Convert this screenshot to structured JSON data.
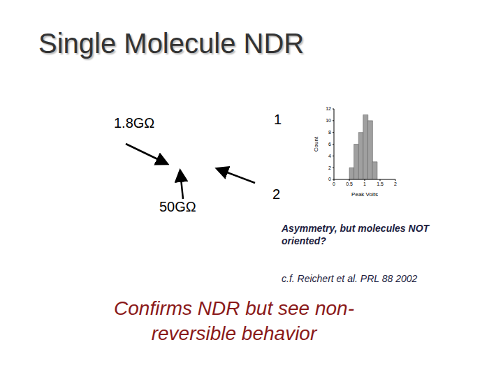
{
  "title": "Single Molecule NDR",
  "labels": {
    "resistance_1": "1.8GΩ",
    "resistance_2": "50GΩ",
    "state_1": "1",
    "state_2": "2"
  },
  "note": "Asymmetry, but molecules NOT oriented?",
  "reference": "c.f. Reichert et al. PRL 88 2002",
  "conclusion": [
    "Confirms NDR but see non-",
    "reversible behavior"
  ],
  "chart_data": {
    "type": "histogram",
    "x_label": "Peak Volts",
    "y_label": "Count",
    "bins": [
      0.5,
      0.65,
      0.8,
      0.95,
      1.1,
      1.25,
      1.4
    ],
    "counts": [
      2,
      6,
      8,
      11,
      10,
      3
    ],
    "color": "#a0a0a0",
    "xlim": [
      0,
      2
    ],
    "xticks": [
      0,
      0.5,
      1,
      1.5,
      2
    ],
    "ylim": [
      0,
      12
    ],
    "yticks": [
      0,
      2,
      4,
      6,
      8,
      10,
      12
    ],
    "grid": false
  }
}
